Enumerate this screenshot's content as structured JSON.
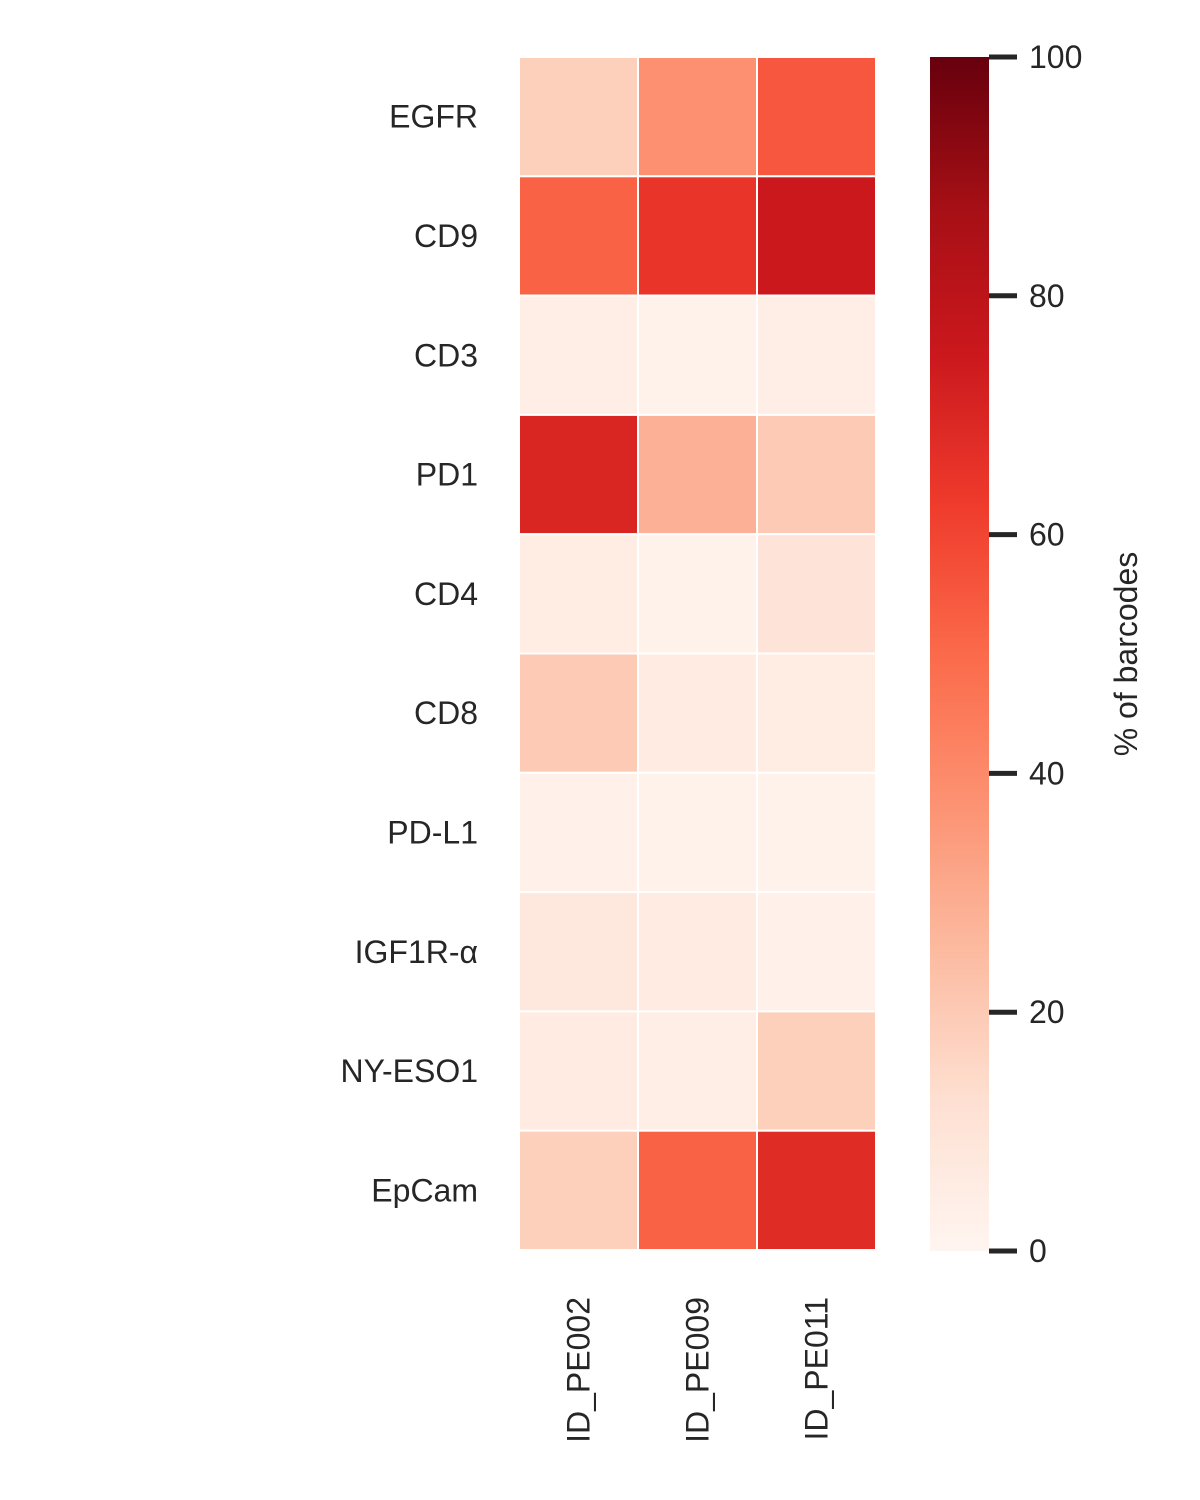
{
  "chart_data": {
    "type": "heatmap",
    "rows": [
      "EGFR",
      "CD9",
      "CD3",
      "PD1",
      "CD4",
      "CD8",
      "PD-L1",
      "IGF1R-α",
      "NY-ESO1",
      "EpCam"
    ],
    "columns": [
      "ID_PE002",
      "ID_PE009",
      "ID_PE011"
    ],
    "values": [
      [
        18,
        38,
        55
      ],
      [
        52,
        65,
        75
      ],
      [
        4,
        2,
        4
      ],
      [
        70,
        28,
        20
      ],
      [
        5,
        2,
        10
      ],
      [
        20,
        6,
        5
      ],
      [
        3,
        2,
        2
      ],
      [
        8,
        6,
        3
      ],
      [
        6,
        4,
        18
      ],
      [
        18,
        52,
        68
      ]
    ],
    "colormap": "Reds",
    "colormap_stops": [
      "#fff5f0",
      "#fee0d2",
      "#fcbba1",
      "#fc9272",
      "#fb6a4a",
      "#ef3b2c",
      "#cb181d",
      "#a50f15",
      "#67000d"
    ],
    "vmin": 0,
    "vmax": 100,
    "colorbar": {
      "label": "% of barcodes",
      "ticks": [
        0,
        20,
        40,
        60,
        80,
        100
      ]
    },
    "title": "",
    "xlabel": "",
    "ylabel": ""
  }
}
